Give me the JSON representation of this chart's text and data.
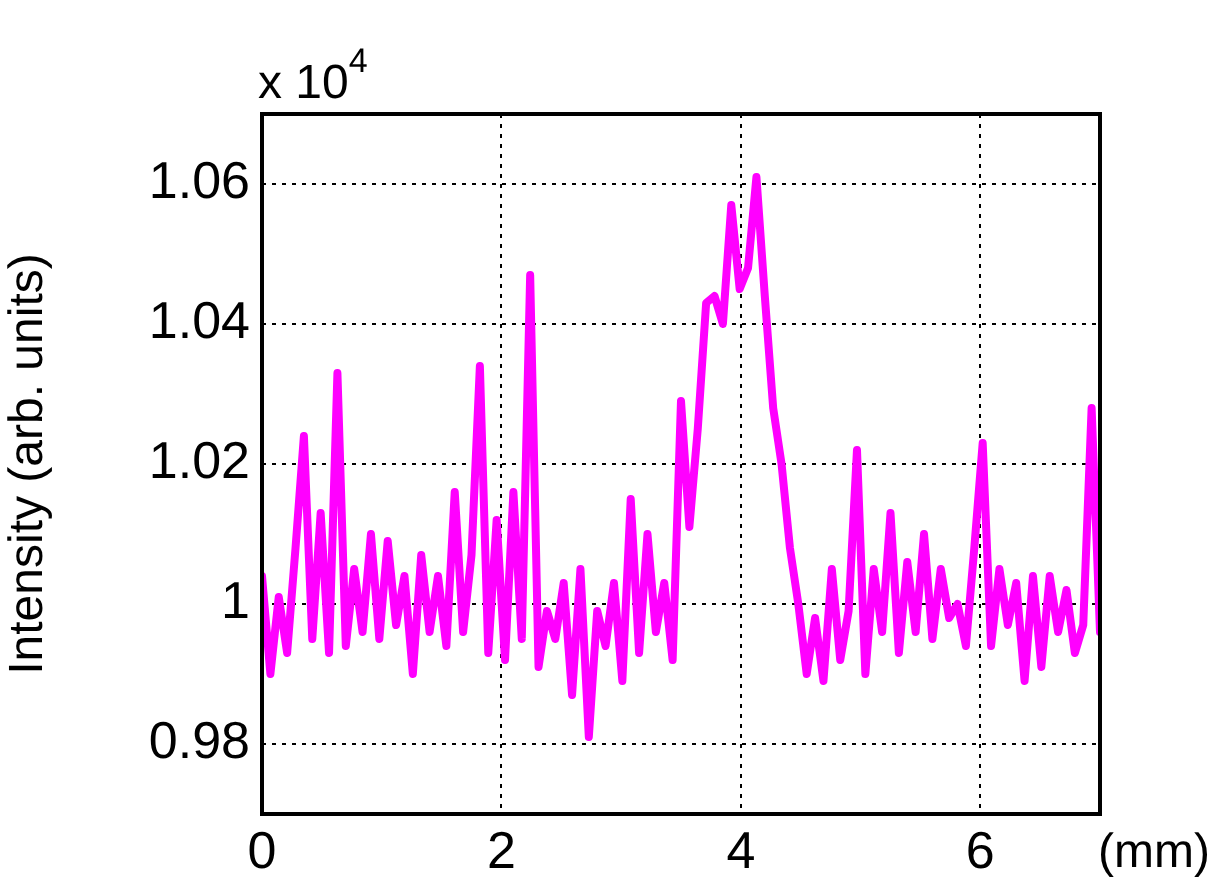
{
  "chart_data": {
    "type": "line",
    "ylabel": "Intensity (arb. units)",
    "xlabel": "(mm)",
    "annotations": [
      "x 10$^{4}$"
    ],
    "x": [
      0,
      0.07,
      0.14,
      0.21,
      0.28,
      0.35,
      0.42,
      0.49,
      0.56,
      0.63,
      0.7,
      0.77,
      0.84,
      0.91,
      0.98,
      1.05,
      1.12,
      1.19,
      1.26,
      1.33,
      1.4,
      1.47,
      1.54,
      1.61,
      1.68,
      1.75,
      1.82,
      1.89,
      1.96,
      2.03,
      2.1,
      2.17,
      2.24,
      2.31,
      2.38,
      2.45,
      2.52,
      2.59,
      2.66,
      2.73,
      2.8,
      2.87,
      2.94,
      3.01,
      3.08,
      3.15,
      3.22,
      3.29,
      3.36,
      3.43,
      3.5,
      3.57,
      3.64,
      3.71,
      3.78,
      3.85,
      3.92,
      3.99,
      4.06,
      4.13,
      4.2,
      4.27,
      4.34,
      4.41,
      4.48,
      4.55,
      4.62,
      4.69,
      4.76,
      4.83,
      4.9,
      4.97,
      5.04,
      5.11,
      5.18,
      5.25,
      5.32,
      5.39,
      5.46,
      5.53,
      5.6,
      5.67,
      5.74,
      5.81,
      5.88,
      5.95,
      6.02,
      6.09,
      6.16,
      6.23,
      6.3,
      6.37,
      6.44,
      6.51,
      6.58,
      6.65,
      6.72,
      6.79,
      6.86,
      6.93,
      7
    ],
    "series": [
      {
        "color": "#ff00ff",
        "values": [
          1.004,
          0.99,
          1.001,
          0.993,
          1.008,
          1.024,
          0.995,
          1.013,
          0.993,
          1.033,
          0.994,
          1.005,
          0.996,
          1.01,
          0.995,
          1.009,
          0.997,
          1.004,
          0.99,
          1.007,
          0.996,
          1.004,
          0.994,
          1.016,
          0.996,
          1.007,
          1.034,
          0.993,
          1.012,
          0.992,
          1.016,
          0.995,
          1.047,
          0.991,
          0.999,
          0.995,
          1.003,
          0.987,
          1.005,
          0.981,
          0.999,
          0.994,
          1.003,
          0.989,
          1.015,
          0.993,
          1.01,
          0.996,
          1.003,
          0.992,
          1.029,
          1.011,
          1.025,
          1.043,
          1.044,
          1.04,
          1.057,
          1.045,
          1.048,
          1.061,
          1.044,
          1.028,
          1.02,
          1.008,
          1,
          0.99,
          0.998,
          0.989,
          1.005,
          0.992,
          0.999,
          1.022,
          0.99,
          1.005,
          0.996,
          1.013,
          0.993,
          1.006,
          0.996,
          1.01,
          0.995,
          1.005,
          0.998,
          1,
          0.994,
          1.008,
          1.023,
          0.994,
          1.005,
          0.997,
          1.003,
          0.989,
          1.004,
          0.991,
          1.004,
          0.996,
          1.002,
          0.993,
          0.997,
          1.028,
          0.996
        ]
      }
    ],
    "xlim": [
      0,
      7
    ],
    "xticks": [
      0,
      2,
      4,
      6
    ],
    "ylim": [
      0.97,
      1.07
    ],
    "yticks": [
      0.98,
      1,
      1.02,
      1.04,
      1.06
    ],
    "grid": true,
    "legend": false,
    "marker": "none",
    "line_style": "solid"
  }
}
